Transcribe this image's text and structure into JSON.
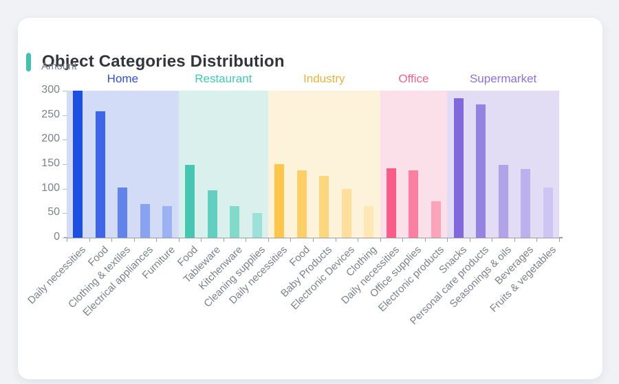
{
  "card": {
    "accent_color": "#3fc3ae"
  },
  "chart_data": {
    "type": "bar",
    "title": "Object Categories Distribution",
    "ylabel": "Amount",
    "xlabel": "",
    "ylim": [
      0,
      300
    ],
    "y_ticks": [
      0,
      50,
      100,
      150,
      200,
      250,
      300
    ],
    "grid": false,
    "legend_position": "none",
    "axis_text_color": "#7b818c",
    "axis_line_color": "#979da6",
    "groups": [
      {
        "name": "Home",
        "label_color": "#2b50e0",
        "band_color": "#d3dcf7",
        "categories": [
          "Daily necessities",
          "Food",
          "Clothing & textiles",
          "Electrical appliances",
          "Furniture"
        ],
        "values": [
          300,
          258,
          102,
          69,
          64
        ],
        "bar_colors": [
          "#1d4fe3",
          "#3e66e8",
          "#6283ec",
          "#8aa3f0",
          "#9db2f2"
        ]
      },
      {
        "name": "Restaurant",
        "label_color": "#41c9b4",
        "band_color": "#d9f0ec",
        "categories": [
          "Food",
          "Tableware",
          "Kitchenware",
          "Cleaning supplies"
        ],
        "values": [
          148,
          97,
          65,
          51
        ],
        "bar_colors": [
          "#45c7b3",
          "#62cfc0",
          "#82dacd",
          "#9ce2d8"
        ]
      },
      {
        "name": "Industry",
        "label_color": "#e9b33c",
        "band_color": "#fdf3da",
        "categories": [
          "Daily necessities",
          "Food",
          "Baby Products",
          "Electronic Devices",
          "Clothing"
        ],
        "values": [
          150,
          138,
          126,
          100,
          64
        ],
        "bar_colors": [
          "#fdc549",
          "#fdcf66",
          "#fdd77e",
          "#fee09c",
          "#fee8b4"
        ]
      },
      {
        "name": "Office",
        "label_color": "#f7618e",
        "band_color": "#fce0e9",
        "categories": [
          "Daily necessities",
          "Office supplies",
          "Electronic products"
        ],
        "values": [
          142,
          138,
          75
        ],
        "bar_colors": [
          "#f95c86",
          "#fa7fa0",
          "#fba4bc"
        ]
      },
      {
        "name": "Supermarket",
        "label_color": "#8d6fe0",
        "band_color": "#e2ddf5",
        "categories": [
          "Snacks",
          "Personal care products",
          "Seasonings & oils",
          "Beverages",
          "Fruits & vegetables"
        ],
        "values": [
          285,
          272,
          148,
          140,
          102
        ],
        "bar_colors": [
          "#8169dc",
          "#9583e2",
          "#b0a3ea",
          "#bcb1ee",
          "#cdc5f2"
        ]
      }
    ]
  }
}
